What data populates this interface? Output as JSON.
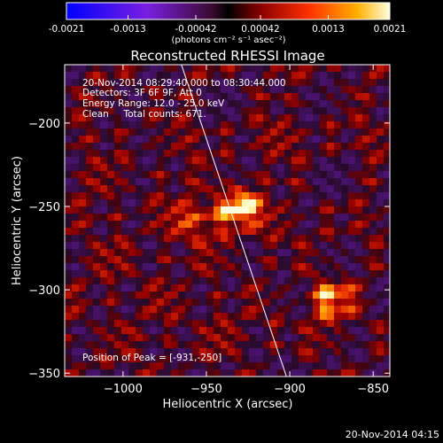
{
  "colorbar": {
    "ticks": [
      "-0.0021",
      "-0.0013",
      "-0.00042",
      "0.00042",
      "0.0013",
      "0.0021"
    ],
    "units": "(photons cm⁻² s⁻¹ asec⁻²)",
    "range": [
      -0.0021,
      0.0021
    ]
  },
  "chart_data": {
    "type": "heatmap",
    "title": "Reconstructed RHESSI Image",
    "xlabel": "Heliocentric X (arcsec)",
    "ylabel": "Heliocentric Y (arcsec)",
    "xlim": [
      -1035,
      -840
    ],
    "ylim": [
      -352,
      -165
    ],
    "xticks": [
      -1000,
      -950,
      -900,
      -850
    ],
    "yticks": [
      -200,
      -250,
      -300,
      -350
    ],
    "xtick_labels": [
      "−1000",
      "−950",
      "−900",
      "−850"
    ],
    "ytick_labels": [
      "−200",
      "−250",
      "−300",
      "−350"
    ],
    "colormap": "red-temperature with negative blue",
    "peak": {
      "x": -931,
      "y": -250
    },
    "sources": [
      {
        "x": -931,
        "y": -250,
        "intensity": 0.0021
      },
      {
        "x": -875,
        "y": -305,
        "intensity": 0.0016
      },
      {
        "x": -955,
        "y": -258,
        "intensity": 0.0009
      }
    ],
    "limb_line": [
      {
        "x": -965,
        "y": -165
      },
      {
        "x": -902,
        "y": -352
      }
    ]
  },
  "annotations": {
    "time_range": "20-Nov-2014 08:29:40.000 to 08:30:44.000",
    "detectors": "Detectors: 3F 6F 9F, Att 0",
    "energy": "Energy Range: 12.0 - 25.0 keV",
    "clean": "Clean     Total counts: 671.",
    "peak": "Position of Peak = [-931,-250]"
  },
  "footer": {
    "timestamp": "20-Nov-2014 04:15"
  }
}
